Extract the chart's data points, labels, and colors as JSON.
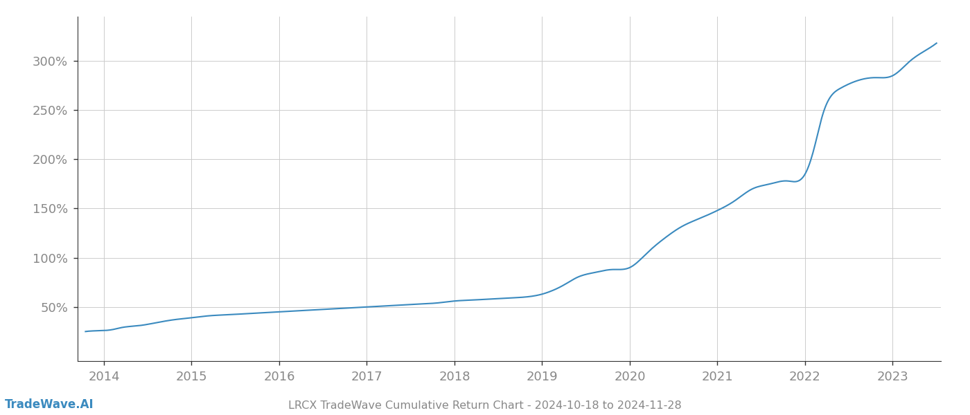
{
  "title": "LRCX TradeWave Cumulative Return Chart - 2024-10-18 to 2024-11-28",
  "watermark": "TradeWave.AI",
  "line_color": "#3a8abf",
  "line_width": 1.5,
  "background_color": "#ffffff",
  "grid_color": "#cccccc",
  "tick_color": "#888888",
  "spine_color": "#333333",
  "x_years": [
    2014,
    2015,
    2016,
    2017,
    2018,
    2019,
    2020,
    2021,
    2022,
    2023
  ],
  "y_ticks": [
    50,
    100,
    150,
    200,
    250,
    300
  ],
  "xlim": [
    2013.7,
    2023.55
  ],
  "ylim": [
    -5,
    345
  ],
  "data_x": [
    2013.79,
    2014.0,
    2014.1,
    2014.2,
    2014.4,
    2014.6,
    2014.8,
    2015.0,
    2015.2,
    2015.4,
    2015.6,
    2015.8,
    2016.0,
    2016.2,
    2016.4,
    2016.6,
    2016.8,
    2017.0,
    2017.2,
    2017.4,
    2017.6,
    2017.8,
    2018.0,
    2018.2,
    2018.4,
    2018.6,
    2018.8,
    2019.0,
    2019.1,
    2019.2,
    2019.3,
    2019.4,
    2019.6,
    2019.8,
    2020.0,
    2020.2,
    2020.4,
    2020.6,
    2020.8,
    2021.0,
    2021.2,
    2021.4,
    2021.5,
    2021.6,
    2021.8,
    2022.0,
    2022.1,
    2022.2,
    2022.4,
    2022.6,
    2022.8,
    2023.0,
    2023.2,
    2023.4,
    2023.5
  ],
  "data_y": [
    25,
    26,
    27,
    29,
    31,
    34,
    37,
    39,
    41,
    42,
    43,
    44,
    45,
    46,
    47,
    48,
    49,
    50,
    51,
    52,
    53,
    54,
    56,
    57,
    58,
    59,
    60,
    63,
    66,
    70,
    75,
    80,
    85,
    88,
    90,
    105,
    120,
    132,
    140,
    148,
    158,
    170,
    173,
    175,
    178,
    185,
    210,
    245,
    272,
    280,
    283,
    285,
    300,
    312,
    318
  ]
}
